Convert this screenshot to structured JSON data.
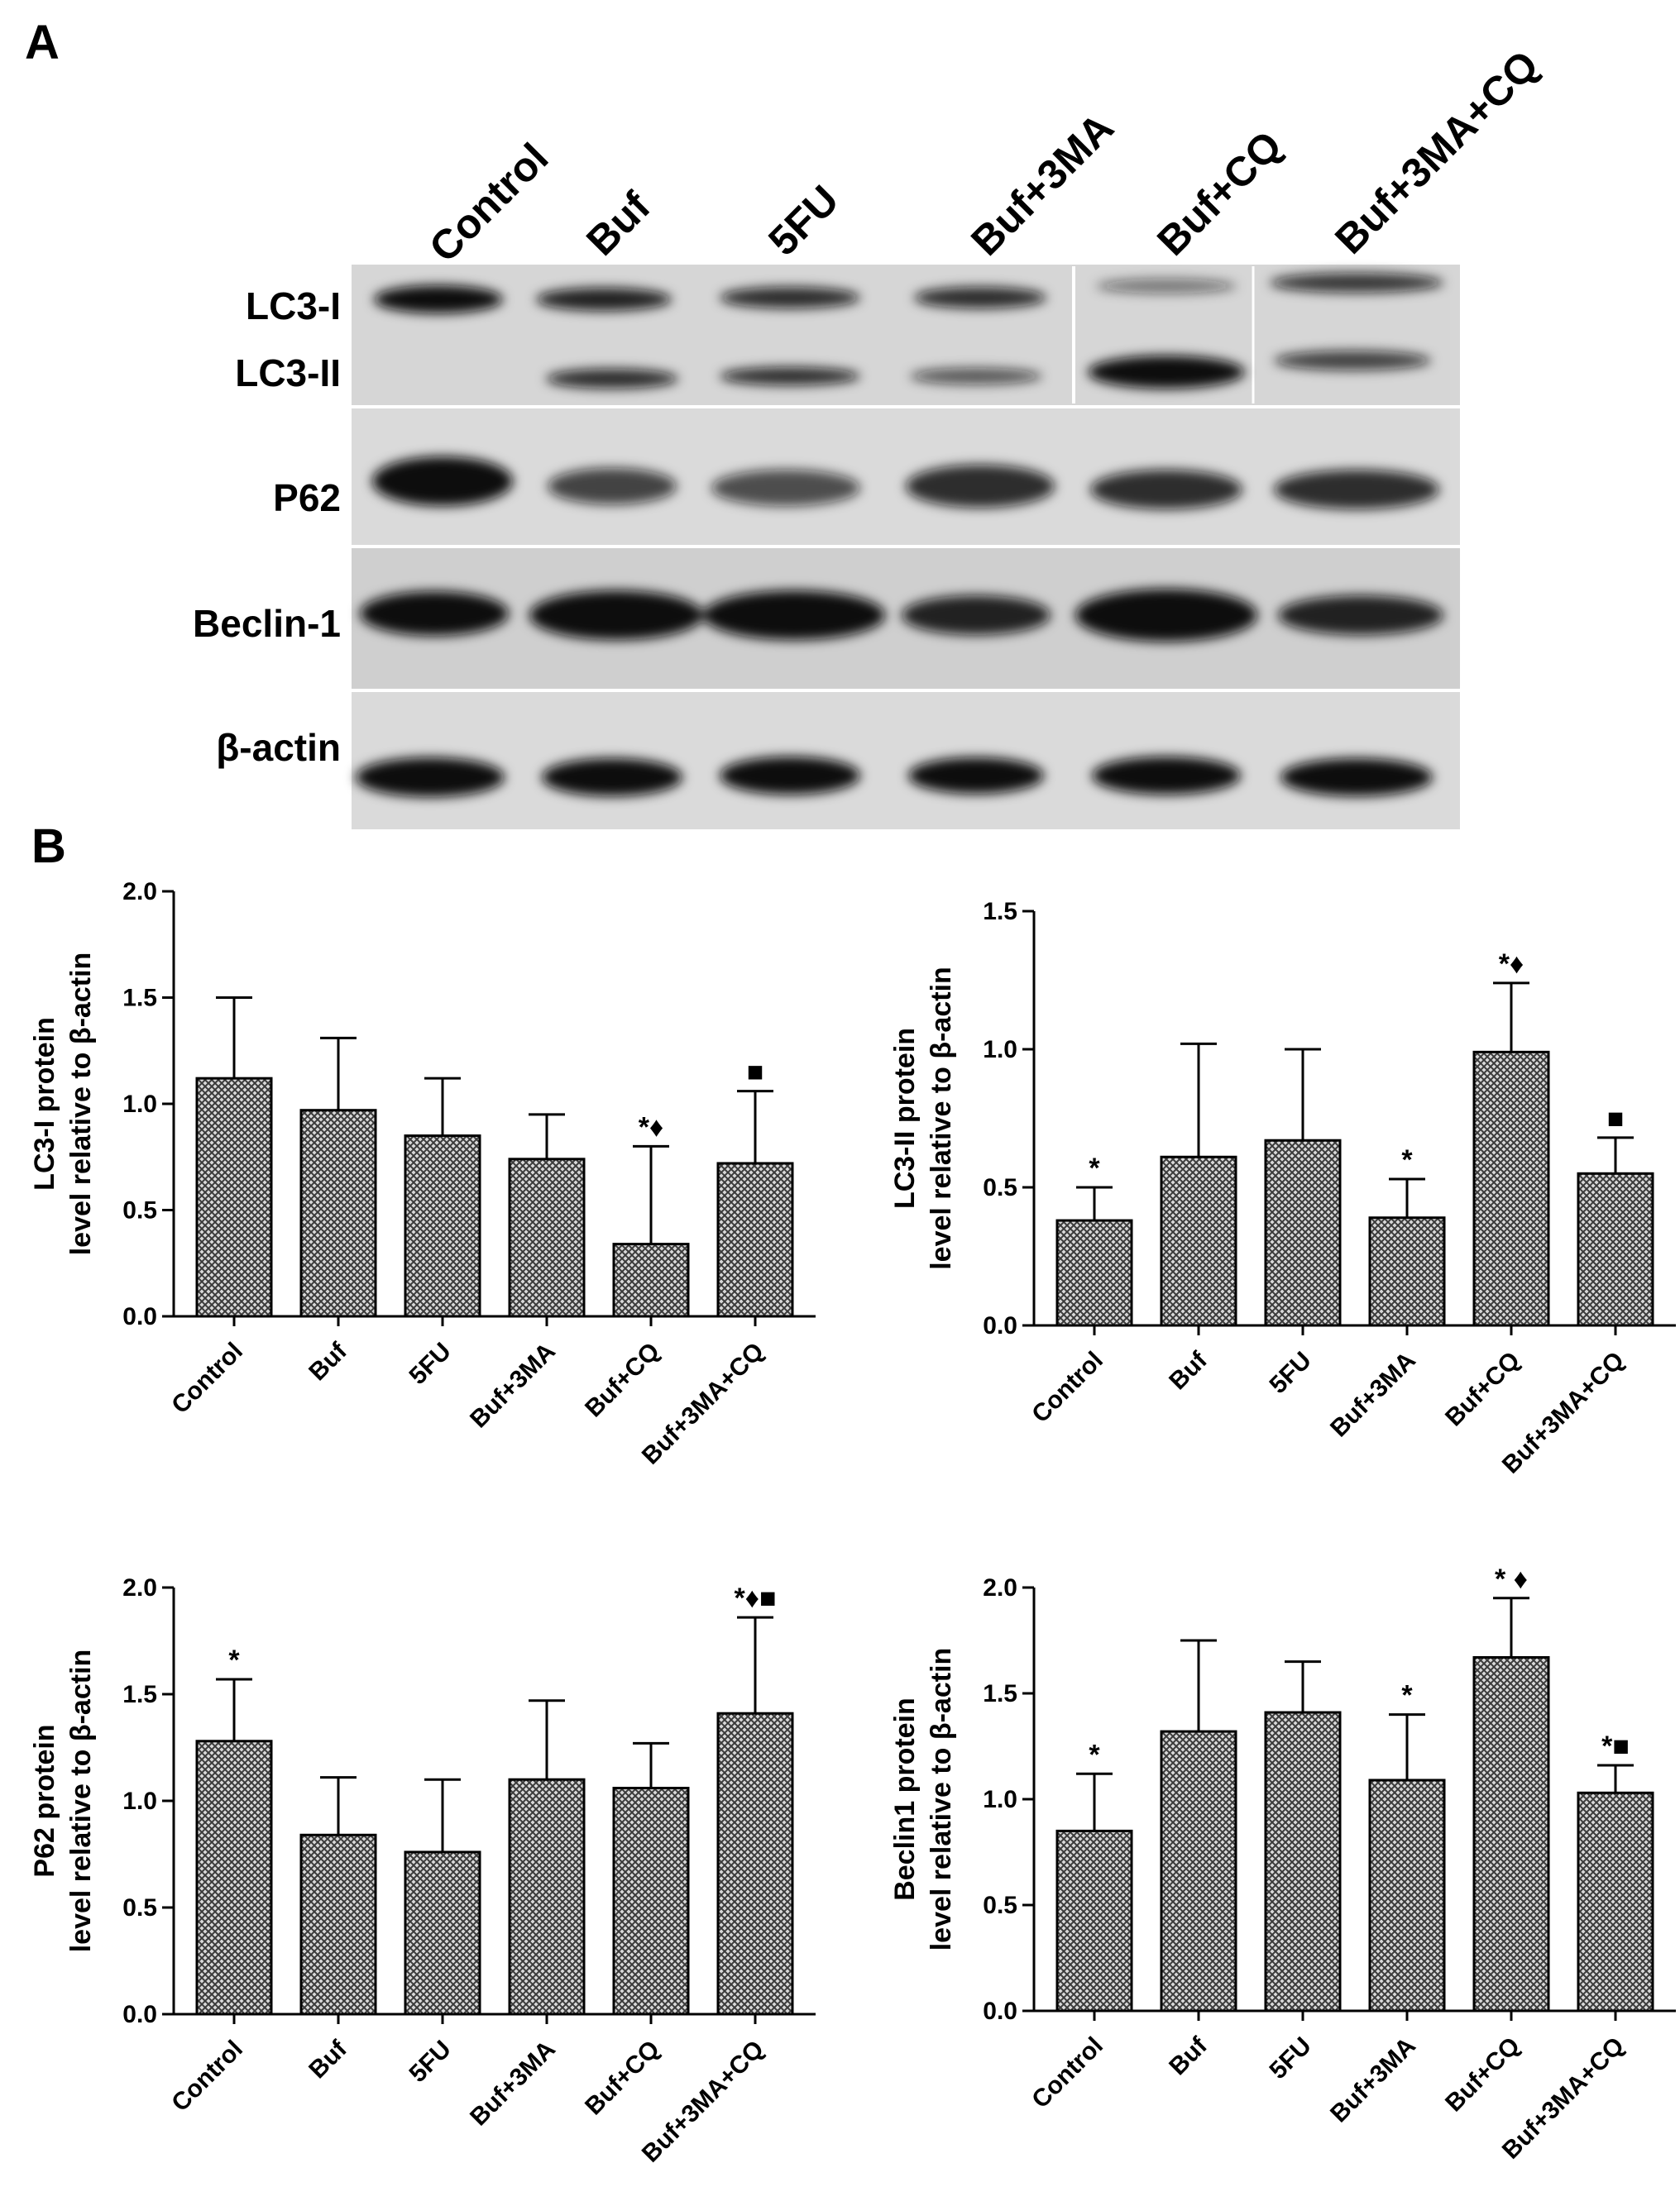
{
  "panels": {
    "a": "A",
    "b": "B"
  },
  "blot": {
    "lanes": [
      "Control",
      "Buf",
      "5FU",
      "Buf+3MA",
      "Buf+CQ",
      "Buf+3MA+CQ"
    ],
    "proteins": [
      "LC3-I",
      "LC3-II",
      "P62",
      "Beclin-1",
      "β-actin"
    ]
  },
  "colors": {
    "bar_fill": "#9a9a9a",
    "bar_stroke": "#000000",
    "text": "#000000"
  },
  "chart_data": [
    {
      "type": "bar",
      "categories": [
        "Control",
        "Buf",
        "5FU",
        "Buf+3MA",
        "Buf+CQ",
        "Buf+3MA+CQ"
      ],
      "values": [
        1.12,
        0.97,
        0.85,
        0.74,
        0.34,
        0.72
      ],
      "errors": [
        0.38,
        0.34,
        0.27,
        0.21,
        0.46,
        0.34
      ],
      "annotations": [
        "",
        "",
        "",
        "",
        "*♦",
        "■"
      ],
      "ylabel_lines": [
        "LC3-I protein",
        "level relative to β-actin"
      ],
      "ylim": [
        0,
        2.0
      ],
      "yticks": [
        "0.0",
        "0.5",
        "1.0",
        "1.5",
        "2.0"
      ],
      "bar_pattern": "crosshatch",
      "grid": false
    },
    {
      "type": "bar",
      "categories": [
        "Control",
        "Buf",
        "5FU",
        "Buf+3MA",
        "Buf+CQ",
        "Buf+3MA+CQ"
      ],
      "values": [
        0.38,
        0.61,
        0.67,
        0.39,
        0.99,
        0.55
      ],
      "errors": [
        0.12,
        0.41,
        0.33,
        0.14,
        0.25,
        0.13
      ],
      "annotations": [
        "*",
        "",
        "",
        "*",
        "*♦",
        "■"
      ],
      "ylabel_lines": [
        "LC3-II protein",
        "level relative to β-actin"
      ],
      "ylim": [
        0,
        1.5
      ],
      "yticks": [
        "0.0",
        "0.5",
        "1.0",
        "1.5"
      ],
      "bar_pattern": "crosshatch",
      "grid": false
    },
    {
      "type": "bar",
      "categories": [
        "Control",
        "Buf",
        "5FU",
        "Buf+3MA",
        "Buf+CQ",
        "Buf+3MA+CQ"
      ],
      "values": [
        1.28,
        0.84,
        0.76,
        1.1,
        1.06,
        1.41
      ],
      "errors": [
        0.29,
        0.27,
        0.34,
        0.37,
        0.21,
        0.45
      ],
      "annotations": [
        "*",
        "",
        "",
        "",
        "",
        "*♦■"
      ],
      "ylabel_lines": [
        "P62 protein",
        "level relative to β-actin"
      ],
      "ylim": [
        0,
        2.0
      ],
      "yticks": [
        "0.0",
        "0.5",
        "1.0",
        "1.5",
        "2.0"
      ],
      "bar_pattern": "crosshatch",
      "grid": false
    },
    {
      "type": "bar",
      "categories": [
        "Control",
        "Buf",
        "5FU",
        "Buf+3MA",
        "Buf+CQ",
        "Buf+3MA+CQ"
      ],
      "values": [
        0.85,
        1.32,
        1.41,
        1.09,
        1.67,
        1.03
      ],
      "errors": [
        0.27,
        0.43,
        0.24,
        0.31,
        0.28,
        0.13
      ],
      "annotations": [
        "*",
        "",
        "",
        "*",
        "* ♦",
        "*■"
      ],
      "ylabel_lines": [
        "Beclin1 protein",
        "level relative to β-actin"
      ],
      "ylim": [
        0,
        2.0
      ],
      "yticks": [
        "0.0",
        "0.5",
        "1.0",
        "1.5",
        "2.0"
      ],
      "bar_pattern": "crosshatch",
      "grid": false
    }
  ]
}
